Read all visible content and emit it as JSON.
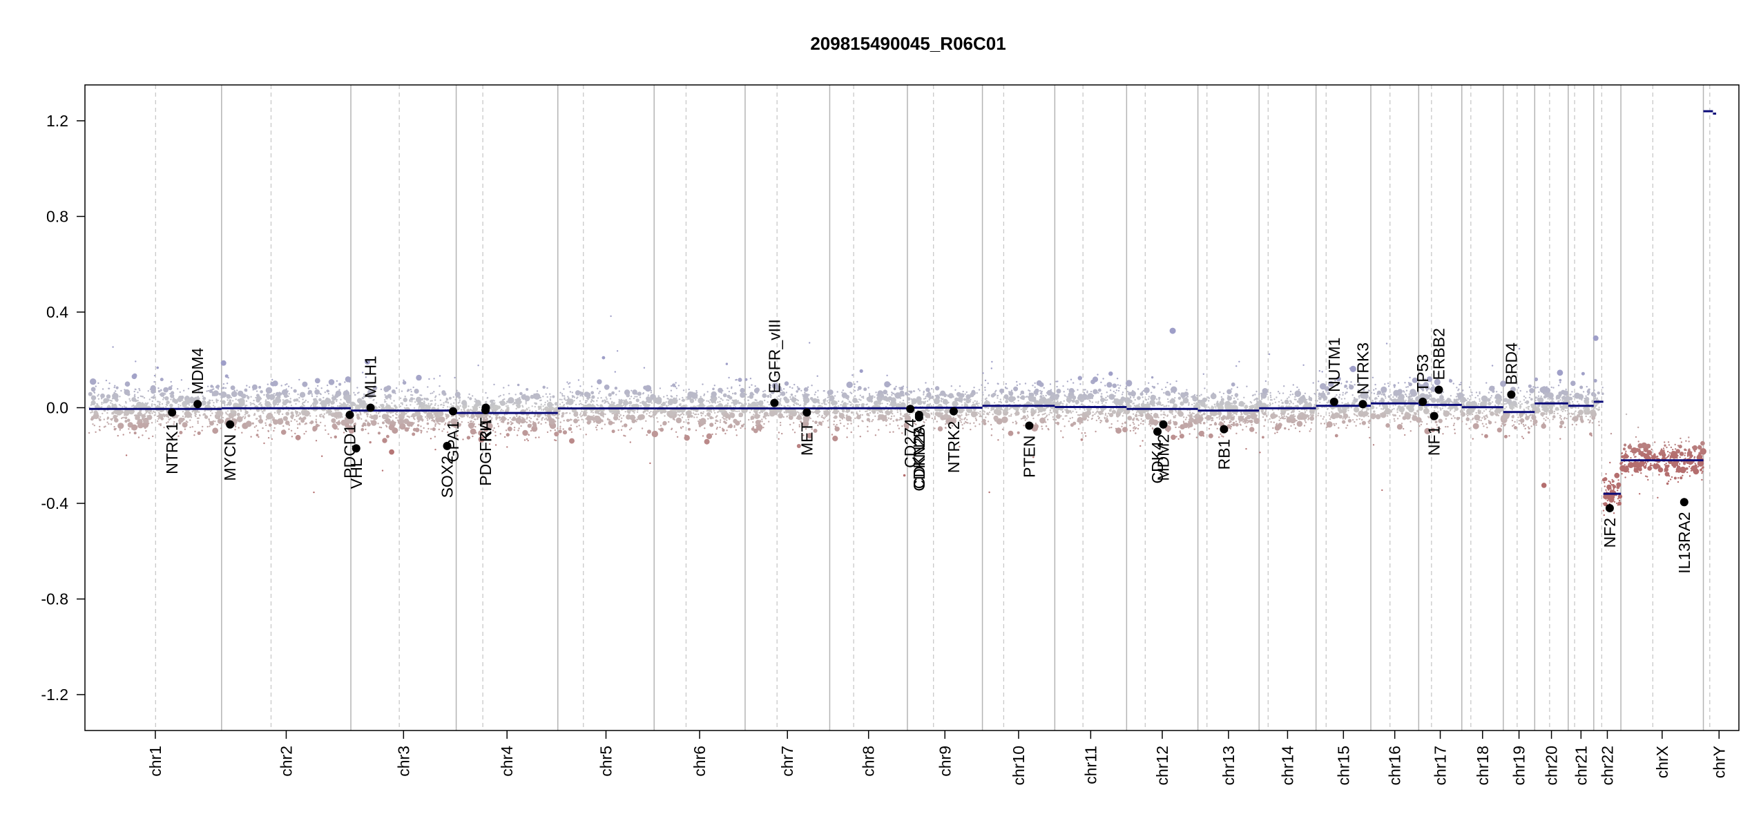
{
  "chart_data": {
    "type": "scatter",
    "title": "209815490045_R06C01",
    "xlabel": "",
    "ylabel": "",
    "ylim": [
      -1.35,
      1.35
    ],
    "y_ticks": [
      -1.2,
      -0.8,
      -0.4,
      0.0,
      0.4,
      0.8,
      1.2
    ],
    "y_tick_labels": [
      "-1.2",
      "-0.8",
      "-0.4",
      "0.0",
      "0.4",
      "0.8",
      "1.2"
    ],
    "grid": "vertical chromosome boundaries (solid) and centromeres (dashed)",
    "colors": {
      "segment": "#0a0a78",
      "gain_point": "#9e9ec8",
      "neutral_point": "#c8c8c8",
      "loss_point": "#b47878",
      "gene_point": "#000000",
      "boundary_line": "#b4b4b4",
      "centromere_line": "#c8c8c8"
    },
    "chromosomes": [
      {
        "name": "chr1",
        "label": "chr1",
        "length": 249,
        "centromere": 125,
        "segments": [
          {
            "start": 0,
            "end": 249,
            "value": -0.005
          }
        ],
        "spread": 0.09
      },
      {
        "name": "chr2",
        "label": "chr2",
        "length": 243,
        "centromere": 93,
        "segments": [
          {
            "start": 0,
            "end": 243,
            "value": -0.002
          }
        ],
        "spread": 0.09
      },
      {
        "name": "chr3",
        "label": "chr3",
        "length": 198,
        "centromere": 91,
        "segments": [
          {
            "start": 0,
            "end": 198,
            "value": -0.012
          }
        ],
        "spread": 0.09
      },
      {
        "name": "chr4",
        "label": "chr4",
        "length": 191,
        "centromere": 50,
        "segments": [
          {
            "start": 0,
            "end": 191,
            "value": -0.022
          }
        ],
        "spread": 0.09
      },
      {
        "name": "chr5",
        "label": "chr5",
        "length": 181,
        "centromere": 48,
        "segments": [
          {
            "start": 0,
            "end": 181,
            "value": -0.003
          }
        ],
        "spread": 0.09
      },
      {
        "name": "chr6",
        "label": "chr6",
        "length": 171,
        "centromere": 60,
        "segments": [
          {
            "start": 0,
            "end": 171,
            "value": -0.003
          }
        ],
        "spread": 0.09
      },
      {
        "name": "chr7",
        "label": "chr7",
        "length": 159,
        "centromere": 60,
        "segments": [
          {
            "start": 0,
            "end": 159,
            "value": -0.003
          }
        ],
        "spread": 0.09
      },
      {
        "name": "chr8",
        "label": "chr8",
        "length": 146,
        "centromere": 45,
        "segments": [
          {
            "start": 0,
            "end": 146,
            "value": -0.002
          }
        ],
        "spread": 0.08
      },
      {
        "name": "chr9",
        "label": "chr9",
        "length": 141,
        "centromere": 49,
        "segments": [
          {
            "start": 0,
            "end": 141,
            "value": 0.0
          }
        ],
        "spread": 0.08
      },
      {
        "name": "chr10",
        "label": "chr10",
        "length": 136,
        "centromere": 40,
        "segments": [
          {
            "start": 0,
            "end": 136,
            "value": 0.008
          }
        ],
        "spread": 0.09
      },
      {
        "name": "chr11",
        "label": "chr11",
        "length": 135,
        "centromere": 53,
        "segments": [
          {
            "start": 0,
            "end": 135,
            "value": 0.003
          }
        ],
        "spread": 0.09
      },
      {
        "name": "chr12",
        "label": "chr12",
        "length": 134,
        "centromere": 35,
        "segments": [
          {
            "start": 0,
            "end": 134,
            "value": -0.005
          }
        ],
        "spread": 0.09
      },
      {
        "name": "chr13",
        "label": "chr13",
        "length": 115,
        "centromere": 17,
        "segments": [
          {
            "start": 0,
            "end": 115,
            "value": -0.012
          }
        ],
        "spread": 0.08
      },
      {
        "name": "chr14",
        "label": "chr14",
        "length": 107,
        "centromere": 17,
        "segments": [
          {
            "start": 0,
            "end": 107,
            "value": -0.002
          }
        ],
        "spread": 0.08
      },
      {
        "name": "chr15",
        "label": "chr15",
        "length": 103,
        "centromere": 19,
        "segments": [
          {
            "start": 0,
            "end": 103,
            "value": 0.008
          }
        ],
        "spread": 0.08
      },
      {
        "name": "chr16",
        "label": "chr16",
        "length": 90,
        "centromere": 36,
        "segments": [
          {
            "start": 0,
            "end": 90,
            "value": 0.018
          }
        ],
        "spread": 0.09
      },
      {
        "name": "chr17",
        "label": "chr17",
        "length": 81,
        "centromere": 24,
        "segments": [
          {
            "start": 0,
            "end": 81,
            "value": 0.012
          }
        ],
        "spread": 0.09
      },
      {
        "name": "chr18",
        "label": "chr18",
        "length": 78,
        "centromere": 17,
        "segments": [
          {
            "start": 0,
            "end": 78,
            "value": 0.002
          }
        ],
        "spread": 0.08
      },
      {
        "name": "chr19",
        "label": "chr19",
        "length": 59,
        "centromere": 26,
        "segments": [
          {
            "start": 0,
            "end": 59,
            "value": -0.018
          }
        ],
        "spread": 0.09
      },
      {
        "name": "chr20",
        "label": "chr20",
        "length": 63,
        "centromere": 28,
        "segments": [
          {
            "start": 0,
            "end": 63,
            "value": 0.018
          }
        ],
        "spread": 0.08
      },
      {
        "name": "chr21",
        "label": "chr21",
        "length": 48,
        "centromere": 12,
        "segments": [
          {
            "start": 0,
            "end": 48,
            "value": 0.008
          }
        ],
        "spread": 0.08
      },
      {
        "name": "chr22",
        "label": "chr22",
        "length": 51,
        "centromere": 15,
        "segments": [
          {
            "start": 0,
            "end": 18,
            "value": 0.025
          },
          {
            "start": 18,
            "end": 51,
            "value": -0.36
          }
        ],
        "spread": 0.08
      },
      {
        "name": "chrX",
        "label": "chrX",
        "length": 155,
        "centromere": 60,
        "segments": [
          {
            "start": 0,
            "end": 155,
            "value": -0.22
          }
        ],
        "spread": 0.07
      },
      {
        "name": "chrY",
        "label": "chrY",
        "length": 59,
        "centromere": 12,
        "segments": [
          {
            "start": 0,
            "end": 18,
            "value": 1.24
          },
          {
            "start": 18,
            "end": 24,
            "value": 1.23
          }
        ],
        "spread": 0.0
      }
    ],
    "genes": [
      {
        "name": "NTRK1",
        "chr": "chr1",
        "pos": 156,
        "value": -0.02,
        "label_side": "below"
      },
      {
        "name": "MDM4",
        "chr": "chr1",
        "pos": 204,
        "value": 0.015,
        "label_side": "above"
      },
      {
        "name": "MYCN",
        "chr": "chr2",
        "pos": 16,
        "value": -0.07,
        "label_side": "below"
      },
      {
        "name": "PDCD1",
        "chr": "chr2",
        "pos": 241,
        "value": -0.03,
        "label_side": "below"
      },
      {
        "name": "VHL",
        "chr": "chr3",
        "pos": 10,
        "value": -0.17,
        "label_side": "below"
      },
      {
        "name": "MLH1",
        "chr": "chr3",
        "pos": 37,
        "value": 0.0,
        "label_side": "above"
      },
      {
        "name": "SOX2",
        "chr": "chr3",
        "pos": 181,
        "value": -0.16,
        "label_side": "below"
      },
      {
        "name": "GPA1",
        "chr": "chr3",
        "pos": 192,
        "value": -0.015,
        "label_side": "below"
      },
      {
        "name": "PDGFRA",
        "chr": "chr4",
        "pos": 55,
        "value": -0.01,
        "label_side": "below"
      },
      {
        "name": "KIT",
        "chr": "chr4",
        "pos": 55.6,
        "value": 0.0,
        "label_side": "below"
      },
      {
        "name": "EGFR_vIII",
        "chr": "chr7",
        "pos": 55,
        "value": 0.02,
        "label_side": "above"
      },
      {
        "name": "MET",
        "chr": "chr7",
        "pos": 116,
        "value": -0.02,
        "label_side": "below"
      },
      {
        "name": "CD274",
        "chr": "chr9",
        "pos": 5.5,
        "value": -0.005,
        "label_side": "below"
      },
      {
        "name": "CDKN2A",
        "chr": "chr9",
        "pos": 21.9,
        "value": -0.03,
        "label_side": "below"
      },
      {
        "name": "CDKN2B",
        "chr": "chr9",
        "pos": 22.0,
        "value": -0.04,
        "label_side": "below"
      },
      {
        "name": "NTRK2",
        "chr": "chr9",
        "pos": 87,
        "value": -0.015,
        "label_side": "below"
      },
      {
        "name": "PTEN",
        "chr": "chr10",
        "pos": 88,
        "value": -0.075,
        "label_side": "below"
      },
      {
        "name": "CDK4",
        "chr": "chr12",
        "pos": 58,
        "value": -0.1,
        "label_side": "below"
      },
      {
        "name": "MDM2",
        "chr": "chr12",
        "pos": 69,
        "value": -0.07,
        "label_side": "below"
      },
      {
        "name": "RB1",
        "chr": "chr13",
        "pos": 49,
        "value": -0.09,
        "label_side": "below"
      },
      {
        "name": "NUTM1",
        "chr": "chr15",
        "pos": 34,
        "value": 0.025,
        "label_side": "above"
      },
      {
        "name": "NTRK3",
        "chr": "chr15",
        "pos": 88,
        "value": 0.015,
        "label_side": "above"
      },
      {
        "name": "TP53",
        "chr": "chr17",
        "pos": 7.6,
        "value": 0.025,
        "label_side": "above"
      },
      {
        "name": "NF1",
        "chr": "chr17",
        "pos": 29,
        "value": -0.035,
        "label_side": "below"
      },
      {
        "name": "ERBB2",
        "chr": "chr17",
        "pos": 37.8,
        "value": 0.075,
        "label_side": "above"
      },
      {
        "name": "BRD4",
        "chr": "chr19",
        "pos": 15,
        "value": 0.055,
        "label_side": "above"
      },
      {
        "name": "NF2",
        "chr": "chr22",
        "pos": 30,
        "value": -0.42,
        "label_side": "below"
      },
      {
        "name": "IL13RA2",
        "chr": "chrX",
        "pos": 119,
        "value": -0.395,
        "label_side": "below"
      }
    ]
  }
}
